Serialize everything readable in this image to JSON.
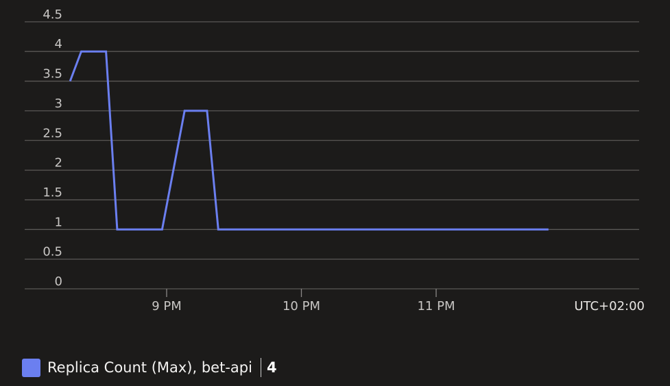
{
  "colors": {
    "background": "#1c1b1a",
    "series": "#6b7ff0",
    "grid": "#5a5856",
    "text": "#c8c6c4"
  },
  "chart_data": {
    "type": "line",
    "title": "",
    "xlabel": "",
    "ylabel": "",
    "timezone_label": "UTC+02:00",
    "x_tick_labels": [
      "9 PM",
      "10 PM",
      "11 PM"
    ],
    "y_tick_labels": [
      "0",
      "0.5",
      "1",
      "1.5",
      "2",
      "2.5",
      "3",
      "3.5",
      "4",
      "4.5"
    ],
    "ylim": [
      0,
      4.5
    ],
    "grid": true,
    "legend_position": "bottom-left",
    "series": [
      {
        "name": "Replica Count (Max), bet-api",
        "legend_value": "4",
        "color": "#6b7ff0",
        "points": [
          {
            "x": "20:17",
            "y": 3.5
          },
          {
            "x": "20:22",
            "y": 4
          },
          {
            "x": "20:33",
            "y": 4
          },
          {
            "x": "20:38",
            "y": 1
          },
          {
            "x": "20:58",
            "y": 1
          },
          {
            "x": "21:08",
            "y": 3
          },
          {
            "x": "21:18",
            "y": 3
          },
          {
            "x": "21:23",
            "y": 1
          },
          {
            "x": "23:50",
            "y": 1
          }
        ]
      }
    ]
  }
}
